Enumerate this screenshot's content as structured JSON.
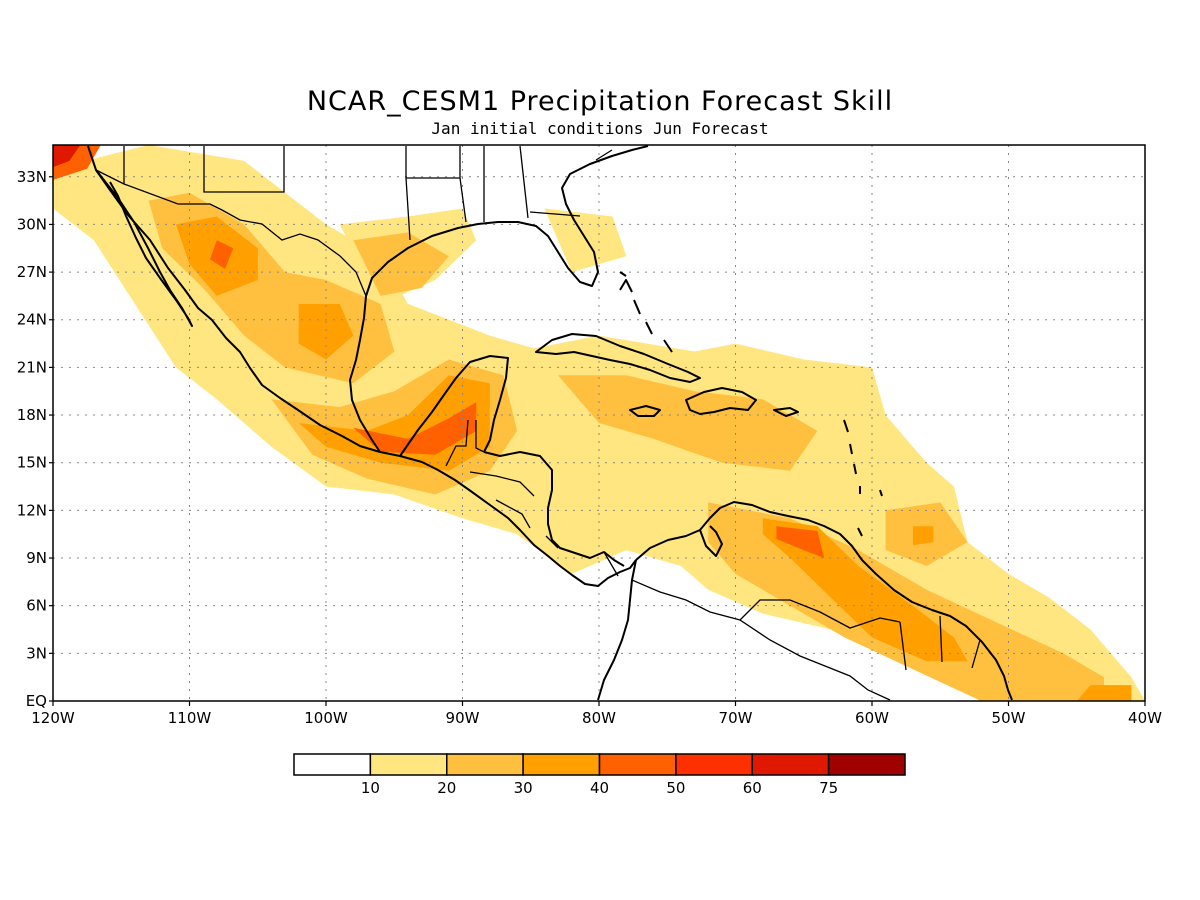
{
  "map": {
    "title": "NCAR_CESM1 Precipitation Forecast Skill",
    "subtitle": "Jan initial conditions  Jun Forecast",
    "extent": {
      "lon": [
        -120,
        -40
      ],
      "lat": [
        0,
        35
      ]
    },
    "lon_ticks": [
      {
        "value": -120,
        "label": "120W"
      },
      {
        "value": -110,
        "label": "110W"
      },
      {
        "value": -100,
        "label": "100W"
      },
      {
        "value": -90,
        "label": "90W"
      },
      {
        "value": -80,
        "label": "80W"
      },
      {
        "value": -70,
        "label": "70W"
      },
      {
        "value": -60,
        "label": "60W"
      },
      {
        "value": -50,
        "label": "50W"
      },
      {
        "value": -40,
        "label": "40W"
      }
    ],
    "lat_ticks": [
      {
        "value": 0,
        "label": "EQ"
      },
      {
        "value": 3,
        "label": "3N"
      },
      {
        "value": 6,
        "label": "6N"
      },
      {
        "value": 9,
        "label": "9N"
      },
      {
        "value": 12,
        "label": "12N"
      },
      {
        "value": 15,
        "label": "15N"
      },
      {
        "value": 18,
        "label": "18N"
      },
      {
        "value": 21,
        "label": "21N"
      },
      {
        "value": 24,
        "label": "24N"
      },
      {
        "value": 27,
        "label": "27N"
      },
      {
        "value": 30,
        "label": "30N"
      },
      {
        "value": 33,
        "label": "33N"
      }
    ],
    "grid": true,
    "skill_regions": [
      {
        "name": "mexico-baja-band",
        "level": 1,
        "points": [
          [
            -120,
            33.5
          ],
          [
            -113,
            35
          ],
          [
            -106,
            34
          ],
          [
            -100,
            30
          ],
          [
            -96,
            28
          ],
          [
            -94,
            25
          ],
          [
            -88,
            23
          ],
          [
            -84,
            22
          ],
          [
            -79,
            21
          ],
          [
            -70,
            22.5
          ],
          [
            -65,
            21.5
          ],
          [
            -60,
            21
          ],
          [
            -59,
            18
          ],
          [
            -56,
            15
          ],
          [
            -54,
            13.5
          ],
          [
            -53,
            10
          ],
          [
            -50,
            8
          ],
          [
            -47,
            6.5
          ],
          [
            -44,
            4.5
          ],
          [
            -41,
            1.5
          ],
          [
            -40,
            0
          ],
          [
            -52,
            0
          ],
          [
            -59,
            3
          ],
          [
            -63,
            4.5
          ],
          [
            -68,
            5.5
          ],
          [
            -72,
            7
          ],
          [
            -74,
            8.5
          ],
          [
            -78,
            9.5
          ],
          [
            -82,
            8
          ],
          [
            -86,
            10.5
          ],
          [
            -90,
            11.5
          ],
          [
            -95,
            13
          ],
          [
            -100,
            13.5
          ],
          [
            -104,
            16
          ],
          [
            -108,
            19
          ],
          [
            -111,
            21
          ],
          [
            -114,
            25
          ],
          [
            -117,
            29
          ],
          [
            -120,
            31
          ]
        ]
      },
      {
        "name": "texas-coast",
        "level": 1,
        "points": [
          [
            -99,
            30
          ],
          [
            -94,
            30.5
          ],
          [
            -90,
            31
          ],
          [
            -89,
            29
          ],
          [
            -92,
            26.5
          ],
          [
            -96,
            25
          ]
        ]
      },
      {
        "name": "gulf-east",
        "level": 1,
        "points": [
          [
            -84,
            31
          ],
          [
            -79,
            30.5
          ],
          [
            -78,
            28
          ],
          [
            -82,
            27
          ]
        ]
      },
      {
        "name": "caribbean-north",
        "level": 1,
        "points": [
          [
            -86,
            22
          ],
          [
            -80,
            23
          ],
          [
            -73,
            22
          ],
          [
            -67,
            21
          ],
          [
            -61,
            20
          ],
          [
            -61,
            17
          ],
          [
            -66,
            16.5
          ],
          [
            -72,
            15
          ],
          [
            -78,
            15.5
          ],
          [
            -83,
            17.5
          ]
        ]
      },
      {
        "name": "mexico-west-core",
        "level": 2,
        "points": [
          [
            -113,
            31.5
          ],
          [
            -110,
            32
          ],
          [
            -106,
            30
          ],
          [
            -103,
            27
          ],
          [
            -100,
            26.5
          ],
          [
            -96,
            25
          ],
          [
            -95,
            22
          ],
          [
            -98,
            20
          ],
          [
            -103,
            21
          ],
          [
            -106,
            23
          ],
          [
            -109,
            26
          ],
          [
            -112,
            28.5
          ]
        ]
      },
      {
        "name": "mexico-south-core",
        "level": 2,
        "points": [
          [
            -104,
            19
          ],
          [
            -99,
            18.5
          ],
          [
            -95,
            19.5
          ],
          [
            -91,
            21.5
          ],
          [
            -87,
            20.5
          ],
          [
            -86,
            17
          ],
          [
            -88,
            14.5
          ],
          [
            -92,
            13
          ],
          [
            -97,
            14
          ],
          [
            -101,
            15.5
          ]
        ]
      },
      {
        "name": "gulf-core",
        "level": 2,
        "points": [
          [
            -98,
            29
          ],
          [
            -94,
            29.5
          ],
          [
            -91,
            28
          ],
          [
            -93,
            26
          ],
          [
            -96,
            25.5
          ]
        ]
      },
      {
        "name": "caribbean-core",
        "level": 2,
        "points": [
          [
            -83,
            20.5
          ],
          [
            -78,
            20.5
          ],
          [
            -73,
            19.5
          ],
          [
            -68,
            19
          ],
          [
            -64,
            17
          ],
          [
            -66,
            14.5
          ],
          [
            -71,
            15
          ],
          [
            -76,
            16.5
          ],
          [
            -80,
            17.5
          ]
        ]
      },
      {
        "name": "venezuela-guiana-core",
        "level": 2,
        "points": [
          [
            -72,
            12.5
          ],
          [
            -66,
            11.5
          ],
          [
            -61,
            9.5
          ],
          [
            -56,
            7
          ],
          [
            -51,
            5
          ],
          [
            -46,
            3
          ],
          [
            -43,
            1.5
          ],
          [
            -43,
            0
          ],
          [
            -52,
            0
          ],
          [
            -57,
            2
          ],
          [
            -62,
            4
          ],
          [
            -66,
            6
          ],
          [
            -70,
            8
          ],
          [
            -72,
            10
          ]
        ]
      },
      {
        "name": "atlantic-east",
        "level": 2,
        "points": [
          [
            -59,
            12
          ],
          [
            -55,
            12.5
          ],
          [
            -53,
            10
          ],
          [
            -56,
            8.5
          ],
          [
            -59,
            9.5
          ]
        ]
      },
      {
        "name": "sierra-madre",
        "level": 3,
        "points": [
          [
            -111,
            30
          ],
          [
            -108,
            30.5
          ],
          [
            -105,
            28.5
          ],
          [
            -105,
            26.5
          ],
          [
            -108,
            25.5
          ],
          [
            -110,
            27.5
          ]
        ]
      },
      {
        "name": "central-mexico",
        "level": 3,
        "points": [
          [
            -102,
            25
          ],
          [
            -99,
            25
          ],
          [
            -98,
            23
          ],
          [
            -100,
            21.5
          ],
          [
            -102,
            22.5
          ]
        ]
      },
      {
        "name": "guerrero-oaxaca",
        "level": 3,
        "points": [
          [
            -102,
            17.5
          ],
          [
            -97,
            17
          ],
          [
            -94,
            18
          ],
          [
            -91,
            20.5
          ],
          [
            -88,
            20
          ],
          [
            -88,
            16
          ],
          [
            -91,
            14.5
          ],
          [
            -96,
            15
          ],
          [
            -100,
            16
          ]
        ]
      },
      {
        "name": "venezuela-core",
        "level": 3,
        "points": [
          [
            -68,
            11.5
          ],
          [
            -64,
            11
          ],
          [
            -61,
            8.5
          ],
          [
            -57,
            6
          ],
          [
            -54,
            4
          ],
          [
            -53,
            2.5
          ],
          [
            -56,
            2.5
          ],
          [
            -60,
            4
          ],
          [
            -63,
            6.5
          ],
          [
            -66,
            9
          ],
          [
            -68,
            10.5
          ]
        ]
      },
      {
        "name": "atlantic-east-core",
        "level": 3,
        "points": [
          [
            -57,
            11
          ],
          [
            -55.5,
            11
          ],
          [
            -55.5,
            10
          ],
          [
            -57,
            9.8
          ]
        ]
      },
      {
        "name": "southeast-tip",
        "level": 3,
        "points": [
          [
            -44,
            1
          ],
          [
            -41,
            1
          ],
          [
            -41,
            0
          ],
          [
            -45,
            0
          ]
        ]
      },
      {
        "name": "yucatan-peak",
        "level": 4,
        "points": [
          [
            -98,
            17.2
          ],
          [
            -94,
            16.5
          ],
          [
            -91,
            17.8
          ],
          [
            -89,
            18.8
          ],
          [
            -89,
            17
          ],
          [
            -92,
            15.5
          ],
          [
            -96,
            15.7
          ]
        ]
      },
      {
        "name": "venezuela-peak",
        "level": 4,
        "points": [
          [
            -67,
            11
          ],
          [
            -64,
            10.7
          ],
          [
            -63.5,
            9
          ],
          [
            -65,
            9.5
          ],
          [
            -67,
            10.2
          ]
        ]
      },
      {
        "name": "sonora-peak",
        "level": 4,
        "points": [
          [
            -108,
            29
          ],
          [
            -106.8,
            28.5
          ],
          [
            -107.4,
            27.2
          ],
          [
            -108.5,
            27.8
          ]
        ]
      },
      {
        "name": "baja-nw-corner",
        "level": 4,
        "points": [
          [
            -120,
            35
          ],
          [
            -116.5,
            35
          ],
          [
            -117.5,
            33.5
          ],
          [
            -120,
            32.8
          ]
        ]
      },
      {
        "name": "baja-nw-peak",
        "level": 6,
        "points": [
          [
            -120,
            35
          ],
          [
            -118,
            35
          ],
          [
            -118.8,
            34
          ],
          [
            -120,
            33.6
          ]
        ]
      }
    ],
    "legend": {
      "colors": [
        "#ffffff",
        "#ffe680",
        "#ffc040",
        "#ffa000",
        "#ff6000",
        "#ff3000",
        "#e11800",
        "#a00000"
      ],
      "labels": [
        "10",
        "20",
        "30",
        "40",
        "50",
        "60",
        "75"
      ]
    }
  }
}
